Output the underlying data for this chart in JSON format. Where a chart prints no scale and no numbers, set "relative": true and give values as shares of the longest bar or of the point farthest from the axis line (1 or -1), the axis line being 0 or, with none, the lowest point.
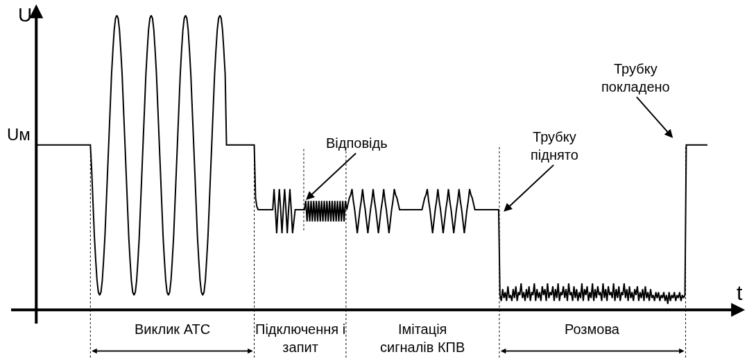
{
  "chart_data": {
    "type": "line",
    "relative": true,
    "xlabel": "t",
    "ylabel": "U",
    "line_style": "solid",
    "marker": "none",
    "categories": [
      null,
      null,
      null,
      null,
      null,
      null,
      null,
      null,
      null,
      null,
      null,
      null,
      null,
      null,
      null,
      null,
      null,
      null,
      null,
      null,
      null,
      null,
      null,
      null,
      null,
      null,
      null,
      null,
      null,
      null,
      null,
      null,
      null,
      null,
      null,
      null,
      null,
      null,
      null,
      null,
      null,
      null,
      null,
      null,
      null,
      null,
      null,
      null,
      null,
      null,
      null,
      null,
      null,
      null,
      null,
      null,
      null,
      null,
      null,
      null,
      null,
      null,
      null,
      null,
      null,
      null,
      null,
      null,
      null,
      null,
      null,
      null,
      null,
      null,
      null,
      null,
      null,
      null,
      null,
      null,
      null,
      null,
      null,
      null,
      null,
      null,
      null,
      null,
      null,
      null,
      null,
      null,
      null,
      null,
      null,
      null,
      null,
      null,
      null,
      null,
      null,
      null,
      null,
      null,
      null,
      null,
      null,
      null,
      null,
      null,
      null,
      null,
      null,
      null,
      null,
      null,
      null,
      null,
      null,
      null,
      null,
      null,
      null,
      null,
      null,
      null,
      null,
      null,
      null,
      null,
      null,
      null,
      null,
      null,
      null,
      null,
      null,
      null,
      null,
      null,
      null,
      null,
      null,
      null,
      null,
      null,
      null,
      null,
      null,
      null,
      null,
      null,
      null,
      null,
      null,
      null,
      null,
      null,
      null,
      null,
      null,
      null,
      null,
      null,
      null,
      null,
      null,
      null,
      null,
      null,
      null,
      null,
      null,
      null,
      null,
      null,
      null,
      null,
      null,
      null,
      null,
      null,
      null,
      null,
      null,
      null,
      null,
      null,
      null,
      null,
      null,
      null,
      null,
      null,
      null,
      null,
      null,
      null,
      null,
      null,
      null,
      null,
      null,
      null,
      null,
      null,
      null,
      null,
      null,
      null,
      null,
      null,
      null,
      null,
      null,
      null,
      null,
      null,
      null,
      null,
      null,
      null,
      null,
      null,
      null,
      null,
      null,
      null,
      null,
      null,
      null,
      null,
      null,
      null,
      null,
      null,
      null,
      null,
      null,
      null,
      null,
      null,
      null,
      null,
      null,
      null,
      null,
      null,
      null,
      null,
      null,
      null,
      null,
      null,
      null,
      null,
      null,
      null,
      null,
      null,
      null,
      null,
      null,
      null,
      null,
      null,
      null,
      null,
      null,
      null,
      null,
      null,
      null,
      null,
      null,
      null,
      null,
      null,
      null,
      null,
      null,
      null,
      null,
      null,
      null,
      null,
      null,
      null,
      null,
      null,
      null,
      null,
      null,
      null,
      null,
      null,
      null,
      null,
      null,
      null,
      null,
      null,
      null,
      null,
      null,
      null,
      null,
      null,
      null,
      null,
      null,
      null,
      null,
      null,
      null,
      null,
      null,
      null,
      null,
      null,
      null,
      null,
      null,
      null,
      null,
      null,
      null,
      null,
      null,
      null,
      null,
      null,
      null,
      null,
      null,
      null,
      null,
      null,
      null,
      null,
      null,
      null,
      null,
      null,
      null,
      null,
      null,
      null,
      null,
      null,
      null,
      null,
      null,
      null,
      null,
      null,
      null,
      null,
      null,
      null,
      null,
      null,
      null,
      null,
      null,
      null,
      null,
      null,
      null,
      null,
      null,
      null,
      null,
      null,
      null,
      null,
      null,
      null,
      null,
      null,
      null,
      null,
      null,
      null,
      null,
      null,
      null,
      null,
      null,
      null,
      null,
      null,
      null,
      null,
      null,
      null,
      null,
      null,
      null,
      null,
      null,
      null,
      null,
      null,
      null,
      null,
      null,
      null,
      null,
      null,
      null,
      null,
      null,
      null,
      null,
      null,
      null,
      null,
      null,
      null,
      null,
      null,
      null,
      null,
      null,
      null,
      null,
      null,
      null,
      null,
      null,
      null,
      null,
      null,
      null,
      null,
      null,
      null,
      null,
      null,
      null,
      null,
      null,
      null,
      null,
      null,
      null,
      null,
      null,
      null,
      null,
      null,
      null,
      null,
      null,
      null,
      null,
      null,
      null,
      null,
      null,
      null,
      null,
      null,
      null,
      null,
      null,
      null,
      null,
      null,
      null,
      null,
      null,
      null,
      null,
      null,
      null,
      null,
      null,
      null,
      null,
      null,
      null,
      null,
      null,
      null,
      null,
      null,
      null,
      null,
      null,
      null,
      null,
      null,
      null,
      null,
      null,
      null,
      null,
      null,
      null,
      null,
      null,
      null,
      null,
      null,
      null,
      null,
      null
    ],
    "series": [
      {
        "color": "#000000",
        "values": [
          0.56,
          0.56,
          0.56,
          0.56,
          0.56,
          0.56,
          0.56,
          0.56,
          0.56,
          0.56,
          0.56,
          0.56,
          0.56,
          0.56,
          0.56,
          0.56,
          0.56,
          0.56,
          0.56,
          0.56,
          0.56,
          0.56,
          0.56,
          0.56,
          0.56,
          0.56,
          0.56,
          0.56,
          0.56,
          0.56,
          0.56,
          0.56,
          0.56,
          0.56,
          0.56,
          0.56,
          0.56,
          0.56,
          0.56,
          0.56,
          0.56,
          0.56,
          0.47,
          0.36,
          0.25,
          0.17,
          0.1,
          0.06,
          0.05,
          0.06,
          0.1,
          0.17,
          0.25,
          0.36,
          0.47,
          0.58,
          0.69,
          0.8,
          0.88,
          0.95,
          0.99,
          1,
          0.99,
          0.95,
          0.88,
          0.8,
          0.69,
          0.58,
          0.47,
          0.36,
          0.25,
          0.17,
          0.1,
          0.06,
          0.05,
          0.06,
          0.1,
          0.17,
          0.25,
          0.36,
          0.47,
          0.58,
          0.69,
          0.8,
          0.88,
          0.95,
          0.99,
          1,
          0.99,
          0.95,
          0.88,
          0.8,
          0.69,
          0.58,
          0.47,
          0.36,
          0.25,
          0.17,
          0.1,
          0.06,
          0.05,
          0.06,
          0.1,
          0.17,
          0.25,
          0.36,
          0.47,
          0.58,
          0.69,
          0.8,
          0.88,
          0.95,
          0.99,
          1,
          0.99,
          0.95,
          0.88,
          0.8,
          0.69,
          0.58,
          0.47,
          0.36,
          0.25,
          0.17,
          0.1,
          0.06,
          0.05,
          0.06,
          0.1,
          0.17,
          0.25,
          0.36,
          0.47,
          0.58,
          0.69,
          0.8,
          0.88,
          0.95,
          0.99,
          1,
          0.99,
          0.95,
          0.88,
          0.8,
          0.56,
          0.56,
          0.56,
          0.56,
          0.56,
          0.56,
          0.56,
          0.56,
          0.56,
          0.56,
          0.56,
          0.56,
          0.56,
          0.56,
          0.56,
          0.56,
          0.56,
          0.56,
          0.56,
          0.56,
          0.56,
          0.56,
          0.38,
          0.35,
          0.34,
          0.34,
          0.34,
          0.34,
          0.34,
          0.34,
          0.34,
          0.34,
          0.34,
          0.34,
          0.34,
          0.34,
          0.41,
          0.34,
          0.26,
          0.34,
          0.41,
          0.34,
          0.26,
          0.34,
          0.41,
          0.34,
          0.26,
          0.34,
          0.41,
          0.34,
          0.26,
          0.3,
          0.34,
          0.34,
          0.34,
          0.34,
          0.34,
          0.34,
          0.34,
          0.34,
          0.37,
          0.3,
          0.37,
          0.3,
          0.37,
          0.3,
          0.37,
          0.3,
          0.37,
          0.3,
          0.37,
          0.3,
          0.37,
          0.3,
          0.37,
          0.3,
          0.37,
          0.3,
          0.37,
          0.3,
          0.37,
          0.3,
          0.37,
          0.3,
          0.37,
          0.3,
          0.37,
          0.3,
          0.37,
          0.3,
          0.37,
          0.34,
          0.36,
          0.38,
          0.39,
          0.41,
          0.37,
          0.34,
          0.3,
          0.26,
          0.3,
          0.34,
          0.37,
          0.41,
          0.37,
          0.34,
          0.3,
          0.26,
          0.3,
          0.34,
          0.37,
          0.41,
          0.37,
          0.34,
          0.3,
          0.26,
          0.3,
          0.34,
          0.37,
          0.41,
          0.37,
          0.34,
          0.3,
          0.26,
          0.3,
          0.34,
          0.37,
          0.41,
          0.39,
          0.38,
          0.36,
          0.34,
          0.34,
          0.34,
          0.34,
          0.34,
          0.34,
          0.34,
          0.34,
          0.34,
          0.34,
          0.34,
          0.34,
          0.34,
          0.34,
          0.34,
          0.34,
          0.34,
          0.34,
          0.36,
          0.38,
          0.39,
          0.41,
          0.37,
          0.34,
          0.3,
          0.26,
          0.3,
          0.34,
          0.37,
          0.41,
          0.37,
          0.34,
          0.3,
          0.26,
          0.3,
          0.34,
          0.37,
          0.41,
          0.37,
          0.34,
          0.3,
          0.26,
          0.3,
          0.34,
          0.37,
          0.41,
          0.37,
          0.34,
          0.3,
          0.26,
          0.3,
          0.34,
          0.37,
          0.41,
          0.39,
          0.38,
          0.36,
          0.34,
          0.34,
          0.34,
          0.34,
          0.34,
          0.34,
          0.34,
          0.34,
          0.34,
          0.34,
          0.34,
          0.34,
          0.34,
          0.34,
          0.34,
          0.34,
          0.34,
          0.34,
          0.34,
          0.05,
          0.03,
          0.07,
          0.04,
          0.06,
          0.03,
          0.08,
          0.04,
          0.05,
          0.03,
          0.07,
          0.04,
          0.08,
          0.03,
          0.06,
          0.05,
          0.09,
          0.04,
          0.06,
          0.03,
          0.07,
          0.04,
          0.08,
          0.03,
          0.06,
          0.05,
          0.09,
          0.03,
          0.07,
          0.04,
          0.06,
          0.03,
          0.08,
          0.05,
          0.07,
          0.03,
          0.09,
          0.04,
          0.06,
          0.05,
          0.08,
          0.03,
          0.07,
          0.04,
          0.09,
          0.03,
          0.06,
          0.05,
          0.08,
          0.04,
          0.07,
          0.03,
          0.09,
          0.05,
          0.06,
          0.03,
          0.08,
          0.04,
          0.07,
          0.03,
          0.06,
          0.04,
          0.09,
          0.03,
          0.07,
          0.05,
          0.08,
          0.03,
          0.06,
          0.04,
          0.09,
          0.03,
          0.07,
          0.04,
          0.08,
          0.05,
          0.06,
          0.03,
          0.09,
          0.04,
          0.07,
          0.03,
          0.08,
          0.05,
          0.06,
          0.04,
          0.09,
          0.03,
          0.07,
          0.04,
          0.08,
          0.03,
          0.06,
          0.05,
          0.09,
          0.04,
          0.07,
          0.03,
          0.08,
          0.04,
          0.06,
          0.03,
          0.07,
          0.05,
          0.08,
          0.03,
          0.06,
          0.04,
          0.07,
          0.03,
          0.08,
          0.04,
          0.06,
          0.03,
          0.07,
          0.04,
          0.05,
          0.03,
          0.06,
          0.04,
          0.06,
          0.03,
          0.05,
          0.04,
          0.06,
          0.03,
          0.05,
          0.02,
          0.06,
          0.03,
          0.05,
          0.04,
          0.06,
          0.03,
          0.05,
          0.04,
          0.06,
          0.03,
          0.05,
          0.04,
          0.05,
          0.56,
          0.56,
          0.56,
          0.56,
          0.56,
          0.56,
          0.56,
          0.56,
          0.56,
          0.56,
          0.56,
          0.56,
          0.56,
          0.56,
          0.56,
          0.56,
          0.56
        ]
      }
    ],
    "annotations": [
      "Uм",
      "Відповідь",
      "Трубку\nпіднято",
      "Трубку\nпокладено",
      "Виклик АТС",
      "Підключення і\nзапит",
      "Імітація\nсигналів КПВ",
      "Розмова"
    ]
  }
}
